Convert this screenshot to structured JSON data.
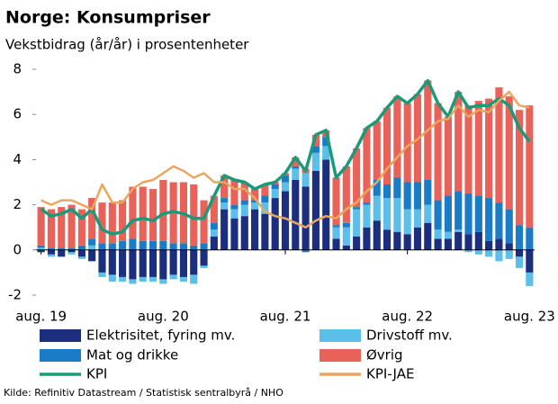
{
  "chart_data": {
    "type": "bar",
    "title": "Norge:  Konsumpriser",
    "subtitle": "Vekstbidrag (år/år) i prosentenheter",
    "source": "Kilde: Refinitiv Datastream / Statistisk sentralbyrå / NHO",
    "categories": [
      "aug. 19",
      null,
      null,
      null,
      null,
      null,
      null,
      null,
      null,
      null,
      null,
      null,
      "aug. 20",
      null,
      null,
      null,
      null,
      null,
      null,
      null,
      null,
      null,
      null,
      null,
      "aug. 21",
      null,
      null,
      null,
      null,
      null,
      null,
      null,
      null,
      null,
      null,
      null,
      "aug. 22",
      null,
      null,
      null,
      null,
      null,
      null,
      null,
      null,
      null,
      null,
      null,
      "aug. 23"
    ],
    "ylim": [
      -2,
      8
    ],
    "yticks": [
      -2,
      0,
      2,
      4,
      6,
      8
    ],
    "series": [
      {
        "name": "Elektrisitet, fyring mv.",
        "color": "#1b2f7e",
        "values": [
          -0.1,
          -0.2,
          -0.3,
          -0.1,
          -0.3,
          -0.5,
          -1.0,
          -1.1,
          -1.2,
          -1.3,
          -1.2,
          -1.2,
          -1.3,
          -1.1,
          -1.2,
          -1.1,
          -0.7,
          0.6,
          1.8,
          1.4,
          1.5,
          1.8,
          1.6,
          2.3,
          2.6,
          3.1,
          2.8,
          3.5,
          4.0,
          0.5,
          0.2,
          0.6,
          1.0,
          1.3,
          0.9,
          0.8,
          0.7,
          1.0,
          1.2,
          0.5,
          0.5,
          0.8,
          0.7,
          0.8,
          0.4,
          0.5,
          0.3,
          -0.3,
          -1.0
        ]
      },
      {
        "name": "Drivstoff mv.",
        "color": "#5bbfe9",
        "values": [
          0.1,
          -0.1,
          0,
          -0.1,
          -0.1,
          0.2,
          -0.2,
          -0.3,
          -0.2,
          -0.2,
          -0.2,
          -0.2,
          -0.2,
          -0.2,
          -0.2,
          -0.4,
          -0.1,
          0.3,
          0.3,
          0.4,
          0.5,
          0.3,
          0.5,
          0.4,
          0.4,
          0.5,
          0.6,
          0.8,
          0.6,
          0.5,
          0.8,
          1.2,
          1.0,
          1.1,
          1.4,
          1.5,
          1.1,
          0.8,
          0.8,
          0.4,
          0.3,
          0.1,
          -0.1,
          -0.2,
          -0.3,
          -0.5,
          -0.4,
          -0.5,
          -0.6
        ]
      },
      {
        "name": "Mat og drikke",
        "color": "#1a7cc6",
        "values": [
          0.1,
          0.1,
          0.1,
          0.1,
          0.2,
          0.3,
          0.3,
          0.3,
          0.4,
          0.5,
          0.4,
          0.4,
          0.4,
          0.3,
          0.3,
          0.2,
          0.3,
          0.3,
          0.2,
          0.2,
          0.2,
          0.1,
          0.3,
          0.2,
          0.3,
          0.1,
          -0.1,
          0.3,
          0.4,
          0.1,
          0.2,
          0.1,
          0.1,
          0.7,
          0.6,
          0.9,
          1.2,
          1.2,
          1.1,
          1.3,
          1.6,
          1.7,
          1.8,
          1.6,
          1.9,
          1.6,
          1.5,
          1.1,
          1.0
        ]
      },
      {
        "name": "Øvrig",
        "color": "#e9625a",
        "values": [
          1.7,
          1.7,
          1.8,
          1.9,
          1.6,
          1.8,
          1.8,
          1.8,
          1.8,
          2.3,
          2.4,
          2.3,
          2.7,
          2.7,
          2.7,
          2.7,
          1.9,
          1.2,
          1.0,
          1.1,
          0.8,
          0.5,
          0.5,
          0.1,
          0.1,
          0.4,
          0.2,
          0.5,
          0.3,
          2.1,
          2.5,
          2.6,
          3.3,
          2.6,
          3.4,
          3.6,
          3.5,
          3.9,
          4.4,
          4.3,
          3.5,
          4.4,
          3.9,
          4.2,
          4.4,
          5.1,
          5.0,
          5.1,
          5.4
        ]
      },
      {
        "name": "KPI",
        "type": "line",
        "color": "#1a9a78",
        "values": [
          1.8,
          1.5,
          1.6,
          1.8,
          1.4,
          1.8,
          0.9,
          0.7,
          0.8,
          1.3,
          1.4,
          1.3,
          1.6,
          1.7,
          1.6,
          1.4,
          1.4,
          2.4,
          3.3,
          3.1,
          3.0,
          2.7,
          2.9,
          3.0,
          3.4,
          4.1,
          3.5,
          5.1,
          5.3,
          3.2,
          3.7,
          4.5,
          5.4,
          5.7,
          6.3,
          6.8,
          6.5,
          6.9,
          7.5,
          6.5,
          5.9,
          7.0,
          6.3,
          6.4,
          6.4,
          6.7,
          6.4,
          5.4,
          4.8
        ]
      },
      {
        "name": "KPI-JAE",
        "type": "line",
        "color": "#e8a65f",
        "values": [
          2.2,
          2.0,
          2.2,
          2.2,
          2.0,
          1.8,
          2.9,
          2.1,
          2.1,
          2.7,
          3.0,
          3.1,
          3.4,
          3.7,
          3.5,
          3.2,
          3.4,
          3.0,
          3.0,
          2.7,
          2.7,
          2.3,
          1.7,
          1.5,
          1.4,
          1.2,
          1.0,
          1.3,
          1.5,
          1.4,
          1.8,
          2.1,
          2.6,
          3.0,
          3.6,
          4.1,
          4.6,
          4.9,
          5.3,
          5.7,
          5.8,
          6.4,
          5.9,
          6.2,
          6.1,
          6.6,
          7.0,
          6.4,
          6.3
        ]
      }
    ]
  }
}
